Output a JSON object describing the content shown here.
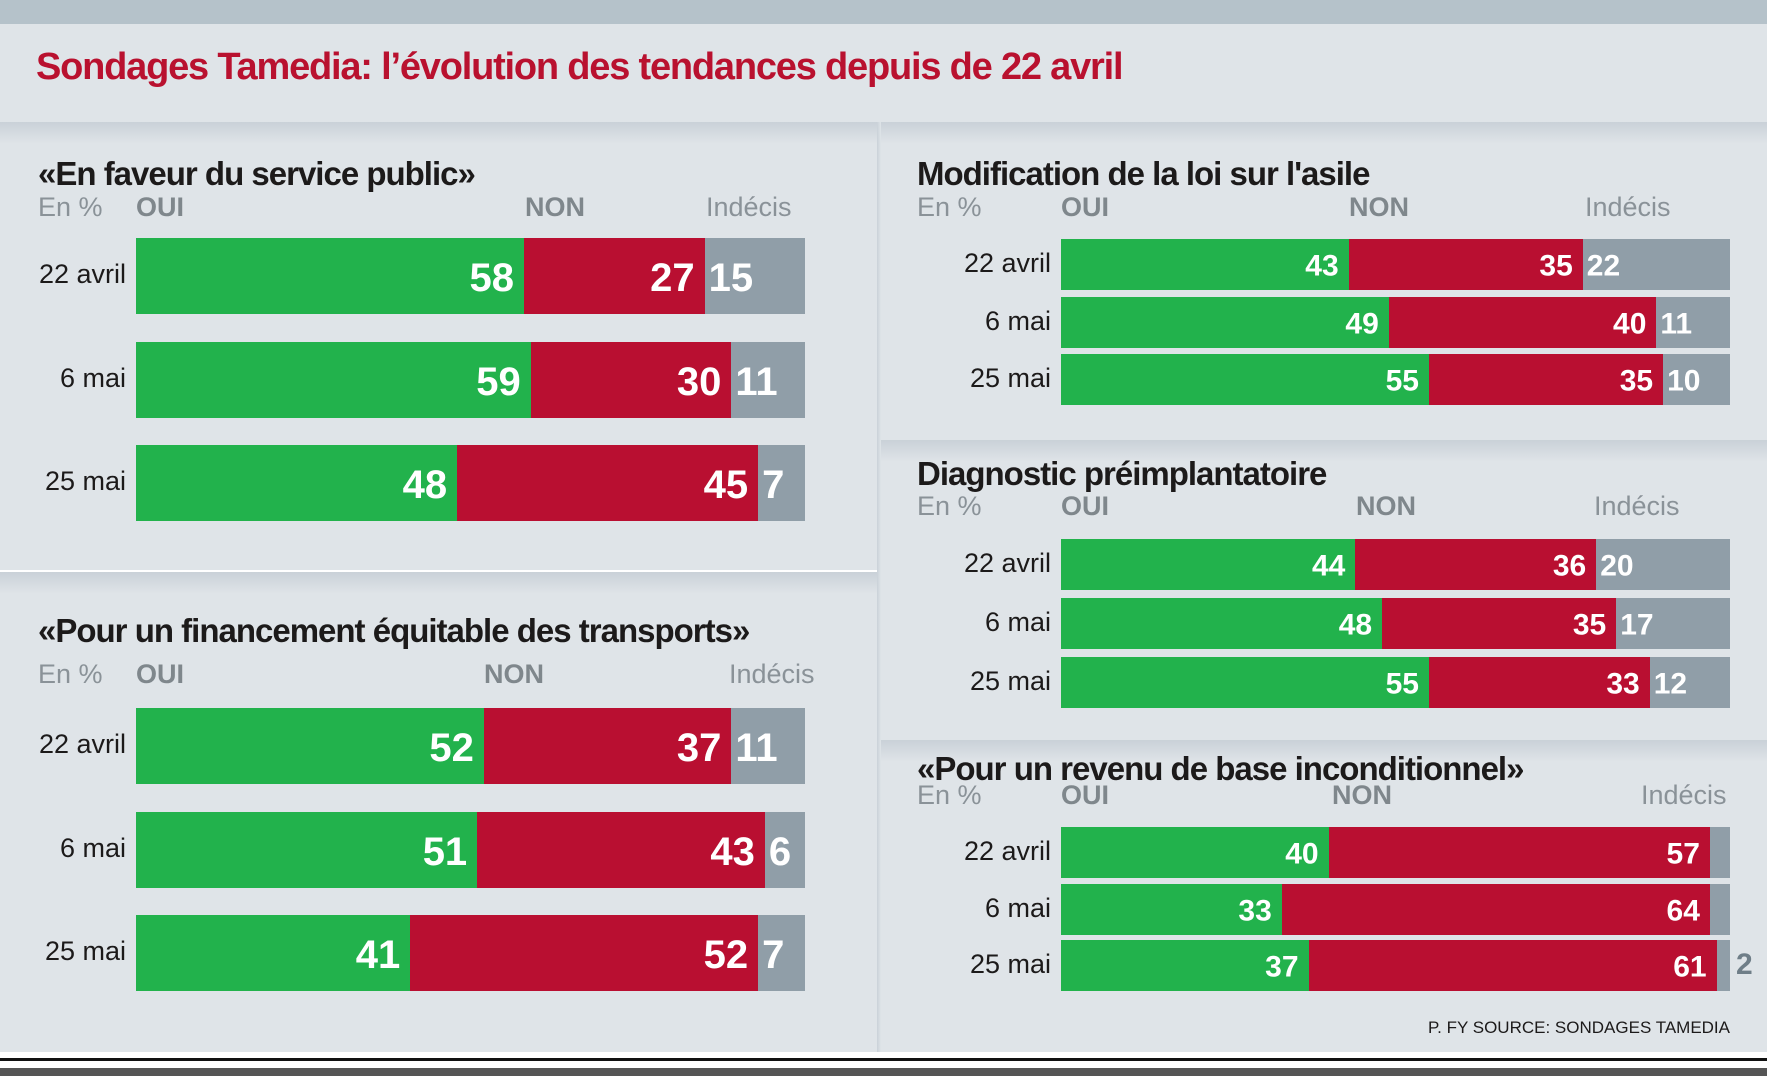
{
  "header": {
    "title": "Sondages Tamedia: l’évolution des tendances depuis de 22 avril"
  },
  "source": "P. FY SOURCE: SONDAGES TAMEDIA",
  "colors": {
    "oui": "#22b24c",
    "non": "#b90f31",
    "indecis": "#909ea8",
    "title": "#b9112f"
  },
  "chart_data": [
    {
      "type": "bar",
      "stacked": true,
      "orientation": "horizontal",
      "title": "«En faveur du service public»",
      "unit_label": "En %",
      "legend": [
        "OUI",
        "NON",
        "Indécis"
      ],
      "categories": [
        "22 avril",
        "6 mai",
        "25 mai"
      ],
      "series": [
        {
          "name": "OUI",
          "values": [
            58,
            59,
            48
          ]
        },
        {
          "name": "NON",
          "values": [
            27,
            30,
            45
          ]
        },
        {
          "name": "Indécis",
          "values": [
            15,
            11,
            7
          ]
        }
      ]
    },
    {
      "type": "bar",
      "stacked": true,
      "orientation": "horizontal",
      "title": "«Pour un financement équitable des transports»",
      "unit_label": "En %",
      "legend": [
        "OUI",
        "NON",
        "Indécis"
      ],
      "categories": [
        "22 avril",
        "6 mai",
        "25 mai"
      ],
      "series": [
        {
          "name": "OUI",
          "values": [
            52,
            51,
            41
          ]
        },
        {
          "name": "NON",
          "values": [
            37,
            43,
            52
          ]
        },
        {
          "name": "Indécis",
          "values": [
            11,
            6,
            7
          ]
        }
      ]
    },
    {
      "type": "bar",
      "stacked": true,
      "orientation": "horizontal",
      "title": "Modification de la loi sur l'asile",
      "unit_label": "En %",
      "legend": [
        "OUI",
        "NON",
        "Indécis"
      ],
      "categories": [
        "22 avril",
        "6 mai",
        "25 mai"
      ],
      "series": [
        {
          "name": "OUI",
          "values": [
            43,
            49,
            55
          ]
        },
        {
          "name": "NON",
          "values": [
            35,
            40,
            35
          ]
        },
        {
          "name": "Indécis",
          "values": [
            22,
            11,
            10
          ]
        }
      ]
    },
    {
      "type": "bar",
      "stacked": true,
      "orientation": "horizontal",
      "title": "Diagnostic préimplantatoire",
      "unit_label": "En %",
      "legend": [
        "OUI",
        "NON",
        "Indécis"
      ],
      "categories": [
        "22 avril",
        "6 mai",
        "25 mai"
      ],
      "series": [
        {
          "name": "OUI",
          "values": [
            44,
            48,
            55
          ]
        },
        {
          "name": "NON",
          "values": [
            36,
            35,
            33
          ]
        },
        {
          "name": "Indécis",
          "values": [
            20,
            17,
            12
          ]
        }
      ]
    },
    {
      "type": "bar",
      "stacked": true,
      "orientation": "horizontal",
      "title": "«Pour un revenu de base inconditionnel»",
      "unit_label": "En %",
      "legend": [
        "OUI",
        "NON",
        "Indécis"
      ],
      "categories": [
        "22 avril",
        "6 mai",
        "25 mai"
      ],
      "series": [
        {
          "name": "OUI",
          "values": [
            40,
            33,
            37
          ]
        },
        {
          "name": "NON",
          "values": [
            57,
            64,
            61
          ]
        },
        {
          "name": "Indécis",
          "values": [
            3,
            3,
            2
          ]
        }
      ]
    }
  ]
}
